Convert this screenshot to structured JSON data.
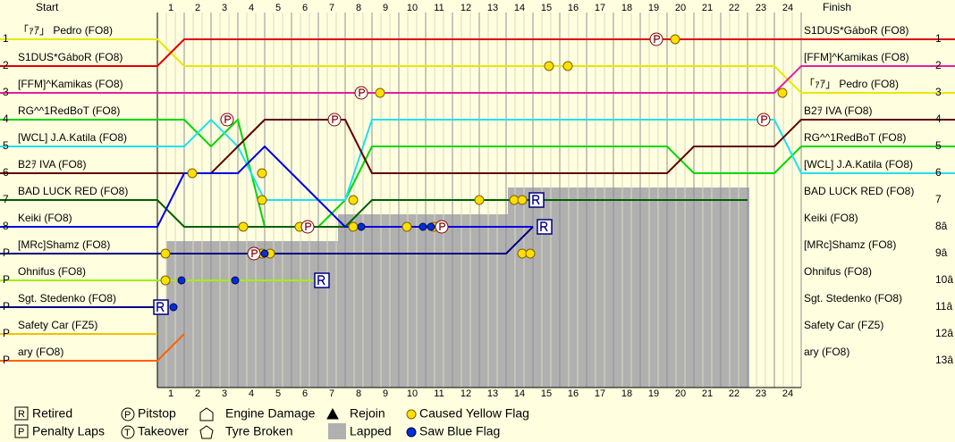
{
  "chart_data": {
    "type": "lapchart",
    "start_label": "Start",
    "finish_label": "Finish",
    "laps": [
      1,
      2,
      3,
      4,
      5,
      6,
      7,
      8,
      9,
      10,
      11,
      12,
      13,
      14,
      15,
      16,
      17,
      18,
      19,
      20,
      21,
      22,
      23,
      24
    ],
    "start_positions": [
      "1",
      "2",
      "3",
      "4",
      "5",
      "6",
      "7",
      "8",
      "P",
      "P",
      "P",
      "P",
      "P"
    ],
    "finish_positions": [
      "1",
      "2",
      "3",
      "4",
      "5",
      "6",
      "7",
      "8â",
      "9â",
      "10â",
      "11â",
      "12â",
      "13â"
    ],
    "finish_names": [
      "S1DUS*GáboR (FO8)",
      "[FFM]^Kamikas (FO8)",
      "「ｧｱ」 Pedro (FO8)",
      "B2ｦ IVA (FO8)",
      "RG^^1RedBoT (FO8)",
      "[WCL] J.A.Katila (FO8)",
      "BAD LUCK RED (FO8)",
      "Keiki (FO8)",
      "[MRc]Shamz (FO8)",
      "Ohnifus (FO8)",
      "Sgt. Stedenko (FO8)",
      "Safety Car (FZ5)",
      "ary (FO8)"
    ],
    "series": [
      {
        "name": "「ｧｱ」 Pedro (FO8)",
        "color": "#e8e800",
        "values": [
          1,
          2,
          2,
          2,
          2,
          2,
          2,
          2,
          2,
          2,
          2,
          2,
          2,
          2,
          2,
          2,
          2,
          2,
          2,
          2,
          2,
          2,
          2,
          2,
          3
        ]
      },
      {
        "name": "S1DUS*GáboR (FO8)",
        "color": "#e00000",
        "values": [
          2,
          1,
          1,
          1,
          1,
          1,
          1,
          1,
          1,
          1,
          1,
          1,
          1,
          1,
          1,
          1,
          1,
          1,
          1,
          1,
          1,
          1,
          1,
          1,
          1
        ]
      },
      {
        "name": "[FFM]^Kamikas (FO8)",
        "color": "#e020a0",
        "values": [
          3,
          3,
          3,
          3,
          3,
          3,
          3,
          3,
          3,
          3,
          3,
          3,
          3,
          3,
          3,
          3,
          3,
          3,
          3,
          3,
          3,
          3,
          3,
          3,
          2
        ]
      },
      {
        "name": "RG^^1RedBoT (FO8)",
        "color": "#00d800",
        "values": [
          4,
          4,
          5,
          4,
          8,
          8,
          8,
          7,
          5,
          5,
          5,
          5,
          5,
          5,
          5,
          5,
          5,
          5,
          5,
          5,
          6,
          6,
          6,
          6,
          5
        ]
      },
      {
        "name": "[WCL] J.A.Katila (FO8)",
        "color": "#20e0f0",
        "values": [
          5,
          5,
          4,
          5,
          7,
          7,
          7,
          7,
          4,
          4,
          4,
          4,
          4,
          4,
          4,
          4,
          4,
          4,
          4,
          4,
          4,
          4,
          4,
          4,
          6
        ]
      },
      {
        "name": "B2ｦ IVA (FO8)",
        "color": "#600000",
        "values": [
          6,
          6,
          6,
          5,
          4,
          4,
          4,
          4,
          6,
          6,
          6,
          6,
          6,
          6,
          6,
          6,
          6,
          6,
          6,
          6,
          5,
          5,
          5,
          5,
          4
        ]
      },
      {
        "name": "BAD LUCK RED (FO8)",
        "color": "#006000",
        "values": [
          7,
          8,
          8,
          8,
          8,
          8,
          8,
          8,
          7,
          7,
          7,
          7,
          7,
          7,
          7,
          7,
          7,
          7,
          7,
          7,
          7,
          7,
          7,
          null,
          null
        ]
      },
      {
        "name": "Keiki (FO8)",
        "color": "#0000e0",
        "values": [
          8,
          6,
          6,
          6,
          5,
          6,
          7,
          8,
          8,
          8,
          8,
          8,
          8,
          8,
          8,
          null,
          null,
          null,
          null,
          null,
          null,
          null,
          null,
          null,
          null
        ]
      },
      {
        "name": "[MRc]Shamz (FO8)",
        "color": "#000080",
        "values": [
          9,
          9,
          9,
          9,
          9,
          9,
          9,
          9,
          9,
          9,
          9,
          9,
          9,
          9,
          8,
          null,
          null,
          null,
          null,
          null,
          null,
          null,
          null,
          null,
          null
        ]
      },
      {
        "name": "Ohnifus (FO8)",
        "color": "#a0f000",
        "values": [
          10,
          10,
          10,
          10,
          10,
          10,
          10,
          null,
          null,
          null,
          null,
          null,
          null,
          null,
          null,
          null,
          null,
          null,
          null,
          null,
          null,
          null,
          null,
          null,
          null
        ]
      },
      {
        "name": "Sgt. Stedenko (FO8)",
        "color": "#000080",
        "values": [
          11,
          null,
          null,
          null,
          null,
          null,
          null,
          null,
          null,
          null,
          null,
          null,
          null,
          null,
          null,
          null,
          null,
          null,
          null,
          null,
          null,
          null,
          null,
          null,
          null
        ]
      },
      {
        "name": "Safety Car (FZ5)",
        "color": "#f0c000",
        "values": [
          12,
          null,
          null,
          null,
          null,
          null,
          null,
          null,
          null,
          null,
          null,
          null,
          null,
          null,
          null,
          null,
          null,
          null,
          null,
          null,
          null,
          null,
          null,
          null,
          null
        ]
      },
      {
        "name": "ary (FO8)",
        "color": "#ff6000",
        "values": [
          13,
          12,
          null,
          null,
          null,
          null,
          null,
          null,
          null,
          null,
          null,
          null,
          null,
          null,
          null,
          null,
          null,
          null,
          null,
          null,
          null,
          null,
          null,
          null,
          null
        ]
      }
    ],
    "pitstops": [
      {
        "lap": 18.6,
        "pos": 1
      },
      {
        "lap": 7.6,
        "pos": 3
      },
      {
        "lap": 2.6,
        "pos": 4
      },
      {
        "lap": 6.6,
        "pos": 4
      },
      {
        "lap": 22.6,
        "pos": 4
      },
      {
        "lap": 3.6,
        "pos": 9
      },
      {
        "lap": 5.6,
        "pos": 8
      },
      {
        "lap": 10.6,
        "pos": 8
      }
    ],
    "yellow_flags": [
      {
        "lap": 19.3,
        "pos": 1
      },
      {
        "lap": 14.6,
        "pos": 2
      },
      {
        "lap": 15.3,
        "pos": 2
      },
      {
        "lap": 8.3,
        "pos": 3
      },
      {
        "lap": 23.3,
        "pos": 3
      },
      {
        "lap": 1.3,
        "pos": 6
      },
      {
        "lap": 3.9,
        "pos": 6
      },
      {
        "lap": 3.9,
        "pos": 7
      },
      {
        "lap": 7.3,
        "pos": 7
      },
      {
        "lap": 12,
        "pos": 7
      },
      {
        "lap": 13.3,
        "pos": 7
      },
      {
        "lap": 13.6,
        "pos": 7
      },
      {
        "lap": 3.2,
        "pos": 8
      },
      {
        "lap": 5.3,
        "pos": 8
      },
      {
        "lap": 7.3,
        "pos": 8
      },
      {
        "lap": 9.3,
        "pos": 8
      },
      {
        "lap": 10.3,
        "pos": 8
      },
      {
        "lap": 0.3,
        "pos": 9
      },
      {
        "lap": 3.9,
        "pos": 9
      },
      {
        "lap": 4.2,
        "pos": 9
      },
      {
        "lap": 13.6,
        "pos": 9
      },
      {
        "lap": 13.9,
        "pos": 9
      },
      {
        "lap": 0.3,
        "pos": 10
      }
    ],
    "blue_flags": [
      {
        "lap": 0.9,
        "pos": 10
      },
      {
        "lap": 2.9,
        "pos": 10
      },
      {
        "lap": 4,
        "pos": 9
      },
      {
        "lap": 7.6,
        "pos": 8
      },
      {
        "lap": 9.9,
        "pos": 8
      },
      {
        "lap": 10.2,
        "pos": 8
      },
      {
        "lap": 0.6,
        "pos": 11
      }
    ],
    "retirements": [
      {
        "lap": 14,
        "pos": 7
      },
      {
        "lap": 14.3,
        "pos": 8
      },
      {
        "lap": 6,
        "pos": 10
      },
      {
        "lap": 0,
        "pos": 11
      }
    ],
    "legend": [
      "Retired",
      "Penalty Laps",
      "Pitstop",
      "Takeover",
      "Engine Damage",
      "Tyre Broken",
      "Rejoin",
      "Lapped",
      "Caused Yellow Flag",
      "Saw Blue Flag"
    ]
  }
}
